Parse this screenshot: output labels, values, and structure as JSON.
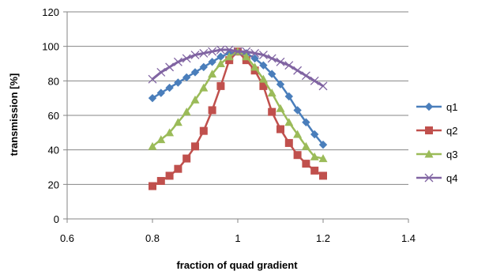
{
  "chart_data": {
    "type": "line",
    "title": "",
    "xlabel": "fraction of quad gradient",
    "ylabel": "transmission [%]",
    "xlim": [
      0.6,
      1.4
    ],
    "ylim": [
      0,
      120
    ],
    "xticks": [
      "0.6",
      "0.8",
      "1",
      "1.2",
      "1.4"
    ],
    "yticks": [
      "0",
      "20",
      "40",
      "60",
      "80",
      "100",
      "120"
    ],
    "grid": "horizontal",
    "legend_position": "right",
    "x": [
      0.8,
      0.82,
      0.84,
      0.86,
      0.88,
      0.9,
      0.92,
      0.94,
      0.96,
      0.98,
      1.0,
      1.02,
      1.04,
      1.06,
      1.08,
      1.1,
      1.12,
      1.14,
      1.16,
      1.18,
      1.2
    ],
    "series": [
      {
        "name": "q1",
        "color": "#4a7ebb",
        "marker": "diamond",
        "values": [
          70,
          73,
          76,
          79,
          82,
          85,
          88,
          91,
          94,
          96,
          97,
          96,
          93,
          89,
          84,
          78,
          71,
          63,
          56,
          49,
          43
        ]
      },
      {
        "name": "q2",
        "color": "#c0504d",
        "marker": "square",
        "values": [
          19,
          22,
          25,
          29,
          35,
          42,
          51,
          63,
          77,
          92,
          97,
          92,
          86,
          77,
          62,
          52,
          44,
          37,
          32,
          28,
          25
        ]
      },
      {
        "name": "q3",
        "color": "#9bbb59",
        "marker": "triangle",
        "values": [
          42,
          46,
          50,
          56,
          62,
          69,
          76,
          84,
          90,
          94,
          97,
          94,
          88,
          81,
          73,
          64,
          56,
          49,
          42,
          36,
          35
        ]
      },
      {
        "name": "q4",
        "color": "#8064a2",
        "marker": "x",
        "values": [
          81,
          85,
          88,
          91,
          93,
          95,
          96,
          97,
          98,
          98,
          97,
          97,
          96,
          95,
          93,
          91,
          89,
          86,
          83,
          80,
          77
        ]
      }
    ]
  }
}
